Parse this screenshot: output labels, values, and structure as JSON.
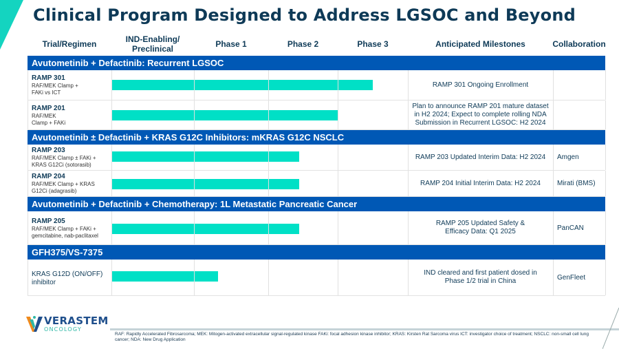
{
  "title": "Clinical Program Designed to Address LGSOC and Beyond",
  "columns": {
    "trial": "Trial/Regimen",
    "ind": "IND-Enabling/ Preclinical",
    "phase1": "Phase 1",
    "phase2": "Phase 2",
    "phase3": "Phase 3",
    "milestones": "Anticipated Milestones",
    "collaboration": "Collaboration"
  },
  "sections": [
    {
      "title": "Avutometinib + Defactinib: Recurrent LGSOC",
      "rows": [
        {
          "name": "RAMP 301",
          "desc": "RAF/MEK Clamp + FAKi vs ICT",
          "progress_phase": 3.5,
          "milestone": "RAMP 301 Ongoing Enrollment",
          "collaboration": ""
        },
        {
          "name": "RAMP 201",
          "desc": "RAF/MEK Clamp + FAKi",
          "progress_phase": 3.0,
          "milestone": "Plan to announce RAMP 201 mature dataset in H2 2024; Expect to complete rolling NDA Submission in Recurrent LGSOC: H2 2024",
          "collaboration": ""
        }
      ]
    },
    {
      "title": "Avutometinib ± Defactinib + KRAS G12C Inhibitors: mKRAS G12C NSCLC",
      "rows": [
        {
          "name": "RAMP 203",
          "desc": "RAF/MEK Clamp ± FAKi + KRAS G12Ci (sotorasib)",
          "progress_phase": 2.45,
          "milestone": "RAMP 203 Updated Interim Data: H2 2024",
          "collaboration": "Amgen"
        },
        {
          "name": "RAMP 204",
          "desc": "RAF/MEK Clamp + KRAS G12Ci (adagrasib)",
          "progress_phase": 2.45,
          "milestone": "RAMP 204 Initial Interim Data: H2 2024",
          "collaboration": "Mirati (BMS)"
        }
      ]
    },
    {
      "title": "Avutometinib + Defactinib + Chemotherapy: 1L Metastatic Pancreatic Cancer",
      "rows": [
        {
          "name": "RAMP 205",
          "desc": "RAF/MEK Clamp + FAKi + gemcitabine, nab-paclitaxel",
          "progress_phase": 2.45,
          "milestone": "RAMP 205 Updated Safety & Efficacy Data: Q1 2025",
          "collaboration": "PanCAN"
        }
      ]
    },
    {
      "title": "GFH375/VS-7375",
      "rows": [
        {
          "name": "",
          "desc": "KRAS G12D (ON/OFF) inhibitor",
          "progress_phase": 1.32,
          "milestone": "IND cleared and first patient dosed in Phase 1/2 trial in China",
          "collaboration": "GenFleet"
        }
      ]
    }
  ],
  "logo": {
    "line1": "VERASTEM",
    "line2": "ONCOLOGY"
  },
  "footnote": "RAF: Rapidly Accelerated Fibrosarcoma;  MEK: Mitogen-activated extracellular signal-regulated kinase  FAKi: focal adhesion kinase inhibitor; KRAS: Kirsten Rat Sarcoma virus ICT: investigator choice of treatment; NSCLC: non-small cell lung cancer; NDA: New Drug Application",
  "colors": {
    "section_bg": "#0058b5",
    "bar": "#00e0c6",
    "title": "#0e3a57",
    "accent": "#14d4c0"
  }
}
